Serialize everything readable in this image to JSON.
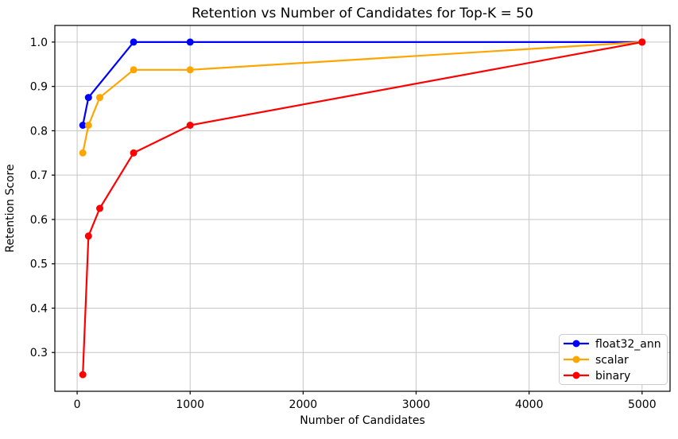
{
  "figure": {
    "title": "Retention vs Number of Candidates for Top-K = 50",
    "xlabel": "Number of Candidates",
    "ylabel": "Retention Score"
  },
  "chart_data": {
    "type": "line",
    "title": "Retention vs Number of Candidates for Top-K = 50",
    "xlabel": "Number of Candidates",
    "ylabel": "Retention Score",
    "xlim": [
      -197.5,
      5247.5
    ],
    "ylim": [
      0.2125,
      1.0375
    ],
    "x_ticks": [
      0,
      1000,
      2000,
      3000,
      4000,
      5000
    ],
    "y_ticks": [
      0.3,
      0.4,
      0.5,
      0.6,
      0.7,
      0.8,
      0.9,
      1.0
    ],
    "grid": true,
    "grid_color": "#c6c6c6",
    "legend_position": "lower right",
    "series": [
      {
        "name": "float32_ann",
        "color": "#0000ff",
        "x": [
          50,
          100,
          500,
          1000,
          5000
        ],
        "y": [
          0.8125,
          0.875,
          1.0,
          1.0,
          1.0
        ]
      },
      {
        "name": "scalar",
        "color": "#ffa500",
        "x": [
          50,
          100,
          200,
          500,
          1000,
          5000
        ],
        "y": [
          0.75,
          0.8125,
          0.875,
          0.9375,
          0.9375,
          1.0
        ]
      },
      {
        "name": "binary",
        "color": "#ff0000",
        "x": [
          50,
          100,
          200,
          500,
          1000,
          5000
        ],
        "y": [
          0.25,
          0.5625,
          0.625,
          0.75,
          0.8125,
          1.0
        ]
      }
    ]
  }
}
